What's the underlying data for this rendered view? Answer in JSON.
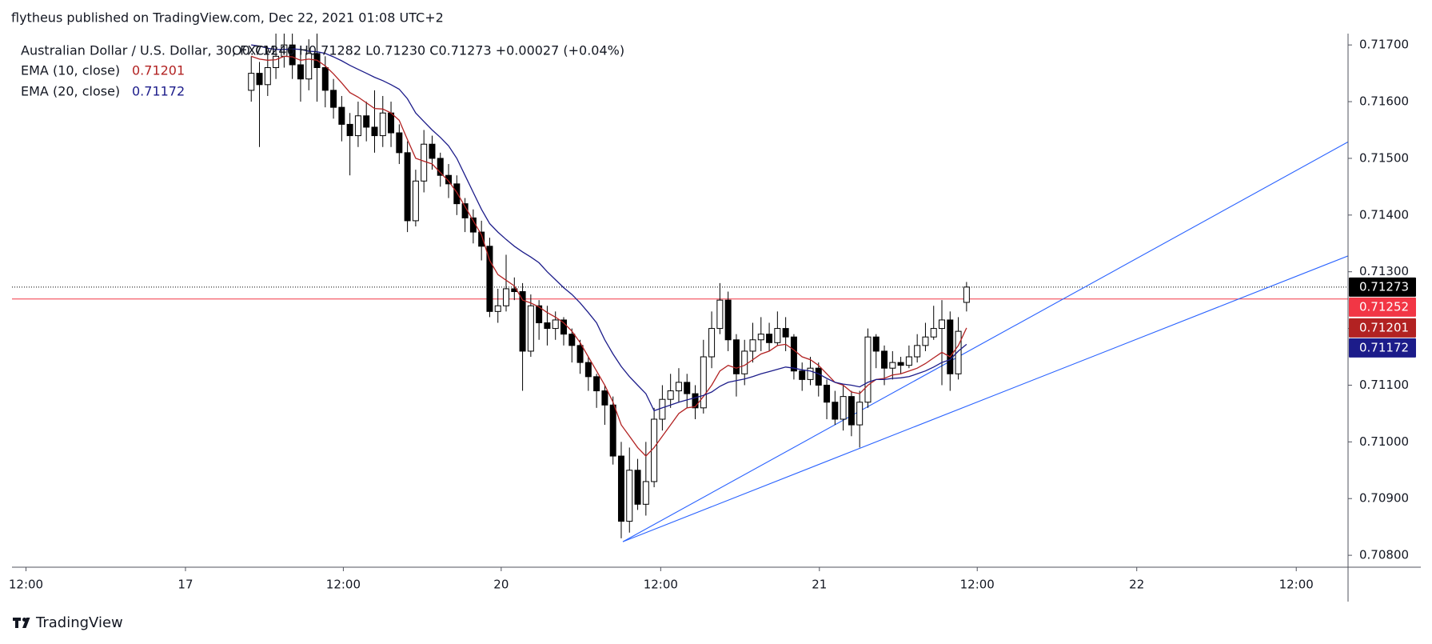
{
  "header": "flytheus published on TradingView.com, Dec 22, 2021 01:08 UTC+2",
  "footer": "TradingView",
  "chart_data": {
    "type": "candlestick",
    "symbol": "Australian Dollar / U.S. Dollar, 30, FXCM",
    "ohlc_text": "O0.71246  H0.71282  L0.71230  C0.71273  +0.00027 (+0.04%)",
    "up_color": "#ffffff",
    "down_color": "#000000",
    "wick_color": "#000000",
    "open": [
      0.7162,
      0.7165,
      0.7163,
      0.7166,
      0.7168,
      0.717,
      0.71665,
      0.7164,
      0.71685,
      0.7166,
      0.7162,
      0.7159,
      0.7156,
      0.7154,
      0.71575,
      0.71555,
      0.7154,
      0.7158,
      0.71545,
      0.7151,
      0.7139,
      0.7146,
      0.71525,
      0.715,
      0.7147,
      0.71455,
      0.7142,
      0.71395,
      0.7137,
      0.71345,
      0.7123,
      0.7124,
      0.7127,
      0.71265,
      0.7116,
      0.7124,
      0.7121,
      0.712,
      0.71215,
      0.7119,
      0.7117,
      0.7114,
      0.71115,
      0.7109,
      0.71065,
      0.70975,
      0.7086,
      0.7095,
      0.7089,
      0.7093,
      0.7104,
      0.71075,
      0.7109,
      0.71105,
      0.71085,
      0.7106,
      0.7115,
      0.712,
      0.7125,
      0.7118,
      0.7112,
      0.7116,
      0.7118,
      0.7119,
      0.71175,
      0.712,
      0.71185,
      0.71125,
      0.7111,
      0.7113,
      0.711,
      0.7107,
      0.7104,
      0.7108,
      0.7103,
      0.7107,
      0.71185,
      0.7116,
      0.7113,
      0.7114,
      0.71135,
      0.7115,
      0.7117,
      0.71185,
      0.712,
      0.71215,
      0.7112,
      0.71246
    ],
    "high": [
      0.7168,
      0.7167,
      0.7169,
      0.7172,
      0.7173,
      0.7172,
      0.7169,
      0.7171,
      0.7172,
      0.7168,
      0.7164,
      0.7161,
      0.7158,
      0.716,
      0.716,
      0.7162,
      0.7161,
      0.716,
      0.7156,
      0.7153,
      0.7148,
      0.7155,
      0.7154,
      0.7151,
      0.7149,
      0.7147,
      0.7143,
      0.7141,
      0.7139,
      0.7136,
      0.7127,
      0.7133,
      0.7129,
      0.7128,
      0.7126,
      0.7125,
      0.7124,
      0.7123,
      0.7122,
      0.712,
      0.7118,
      0.7115,
      0.7112,
      0.711,
      0.7108,
      0.71,
      0.7099,
      0.7097,
      0.71,
      0.7106,
      0.711,
      0.7112,
      0.7113,
      0.7112,
      0.711,
      0.7118,
      0.7123,
      0.7128,
      0.71265,
      0.7119,
      0.7118,
      0.7121,
      0.7122,
      0.7121,
      0.7123,
      0.7122,
      0.7119,
      0.7114,
      0.7115,
      0.7114,
      0.7111,
      0.7109,
      0.711,
      0.7109,
      0.7109,
      0.712,
      0.7119,
      0.7117,
      0.7116,
      0.7115,
      0.7117,
      0.7119,
      0.7121,
      0.7124,
      0.7125,
      0.7123,
      0.7122,
      0.71282
    ],
    "low": [
      0.716,
      0.7152,
      0.7161,
      0.7164,
      0.7166,
      0.7164,
      0.716,
      0.7162,
      0.716,
      0.7159,
      0.7157,
      0.7153,
      0.7147,
      0.7152,
      0.7153,
      0.7151,
      0.7152,
      0.7152,
      0.7149,
      0.7137,
      0.7138,
      0.7144,
      0.7148,
      0.7145,
      0.7143,
      0.714,
      0.7137,
      0.7135,
      0.7132,
      0.7122,
      0.7121,
      0.7123,
      0.7125,
      0.7109,
      0.7115,
      0.7118,
      0.7117,
      0.7118,
      0.7117,
      0.7114,
      0.7112,
      0.7109,
      0.7106,
      0.7103,
      0.7096,
      0.7083,
      0.7084,
      0.7088,
      0.7087,
      0.7092,
      0.7102,
      0.7106,
      0.7107,
      0.7106,
      0.7104,
      0.7105,
      0.7113,
      0.7119,
      0.7116,
      0.7108,
      0.711,
      0.7114,
      0.7116,
      0.7116,
      0.7117,
      0.7116,
      0.7111,
      0.7109,
      0.711,
      0.7108,
      0.7104,
      0.7103,
      0.7102,
      0.7101,
      0.7099,
      0.7106,
      0.7113,
      0.711,
      0.7111,
      0.7112,
      0.7113,
      0.7114,
      0.7116,
      0.7118,
      0.711,
      0.7109,
      0.7111,
      0.7123
    ],
    "close": [
      0.7165,
      0.7163,
      0.7166,
      0.7168,
      0.717,
      0.71665,
      0.7164,
      0.71685,
      0.7166,
      0.7162,
      0.7159,
      0.7156,
      0.7154,
      0.71575,
      0.71555,
      0.7154,
      0.7158,
      0.71545,
      0.7151,
      0.7139,
      0.7146,
      0.71525,
      0.715,
      0.7147,
      0.71455,
      0.7142,
      0.71395,
      0.7137,
      0.71345,
      0.7123,
      0.7124,
      0.7127,
      0.71265,
      0.7116,
      0.7124,
      0.7121,
      0.712,
      0.71215,
      0.7119,
      0.7117,
      0.7114,
      0.71115,
      0.7109,
      0.71065,
      0.70975,
      0.7086,
      0.7095,
      0.7089,
      0.7093,
      0.7104,
      0.71075,
      0.7109,
      0.71105,
      0.71085,
      0.7106,
      0.7115,
      0.712,
      0.7125,
      0.7118,
      0.7112,
      0.7116,
      0.7118,
      0.7119,
      0.71175,
      0.712,
      0.71185,
      0.71125,
      0.7111,
      0.7113,
      0.711,
      0.7107,
      0.7104,
      0.7108,
      0.7103,
      0.7107,
      0.71185,
      0.7116,
      0.7113,
      0.7114,
      0.71135,
      0.7115,
      0.7117,
      0.71185,
      0.712,
      0.71215,
      0.7112,
      0.71195,
      0.71273
    ],
    "series": [
      {
        "name": "EMA (10, close)",
        "color": "#b22222",
        "values": [
          0.7168,
          0.71675,
          0.71673,
          0.71674,
          0.7168,
          0.71679,
          0.71673,
          0.71675,
          0.71673,
          0.71663,
          0.71649,
          0.71633,
          0.71616,
          0.71608,
          0.71598,
          0.71588,
          0.71587,
          0.7158,
          0.71567,
          0.71533,
          0.715,
          0.71495,
          0.7149,
          0.71475,
          0.7146,
          0.7144,
          0.71415,
          0.7139,
          0.71365,
          0.7132,
          0.71295,
          0.71285,
          0.71275,
          0.7125,
          0.71245,
          0.71238,
          0.71228,
          0.7122,
          0.7121,
          0.71195,
          0.71175,
          0.7115,
          0.71125,
          0.711,
          0.7107,
          0.7103,
          0.7101,
          0.7099,
          0.70975,
          0.7099,
          0.7101,
          0.7103,
          0.7105,
          0.7106,
          0.71062,
          0.7108,
          0.711,
          0.71125,
          0.71135,
          0.7113,
          0.71135,
          0.71145,
          0.71155,
          0.7116,
          0.7117,
          0.71172,
          0.71162,
          0.7115,
          0.71145,
          0.71135,
          0.7112,
          0.71105,
          0.711,
          0.71088,
          0.71085,
          0.711,
          0.7111,
          0.71112,
          0.71118,
          0.7112,
          0.71125,
          0.7113,
          0.71138,
          0.71148,
          0.71158,
          0.7115,
          0.7117,
          0.71201
        ]
      },
      {
        "name": "EMA (20, close)",
        "color": "#1c1c8a",
        "values": [
          0.717,
          0.71698,
          0.71694,
          0.71692,
          0.71692,
          0.71693,
          0.71692,
          0.71689,
          0.71688,
          0.71685,
          0.71679,
          0.71672,
          0.71664,
          0.71657,
          0.7165,
          0.71643,
          0.71637,
          0.7163,
          0.71622,
          0.71605,
          0.7158,
          0.71565,
          0.7155,
          0.71537,
          0.71522,
          0.715,
          0.7147,
          0.7144,
          0.7141,
          0.71385,
          0.7137,
          0.71357,
          0.71345,
          0.71335,
          0.71326,
          0.71316,
          0.713,
          0.71286,
          0.71272,
          0.7126,
          0.71245,
          0.71228,
          0.7121,
          0.7118,
          0.71155,
          0.71133,
          0.71115,
          0.711,
          0.71085,
          0.71055,
          0.7106,
          0.71065,
          0.7107,
          0.71074,
          0.71078,
          0.71082,
          0.71088,
          0.71098,
          0.71105,
          0.71108,
          0.71111,
          0.71115,
          0.7112,
          0.71124,
          0.71128,
          0.71132,
          0.7113,
          0.71127,
          0.71125,
          0.7112,
          0.71112,
          0.71105,
          0.71102,
          0.711,
          0.71097,
          0.71105,
          0.7111,
          0.7111,
          0.71112,
          0.71113,
          0.71115,
          0.7112,
          0.71125,
          0.71132,
          0.7114,
          0.71145,
          0.7116,
          0.71172
        ]
      }
    ],
    "hline": {
      "value": 0.71252,
      "color": "#f23645"
    },
    "last_price_color": "#000000",
    "trendline_color": "#2962ff",
    "trendlines": [
      {
        "x": [
          45.2,
          133.4
        ],
        "y": [
          0.70824,
          0.71529
        ]
      },
      {
        "x": [
          45.2,
          133.4
        ],
        "y": [
          0.70824,
          0.71328
        ]
      }
    ],
    "xlim": [
      -29.1,
      133.4
    ],
    "xticks": [
      {
        "value": -27.4,
        "label": "12:00"
      },
      {
        "value": -8.0,
        "label": "17"
      },
      {
        "value": 11.2,
        "label": "12:00"
      },
      {
        "value": 30.4,
        "label": "20"
      },
      {
        "value": 49.8,
        "label": "12:00"
      },
      {
        "value": 69.1,
        "label": "21"
      },
      {
        "value": 88.3,
        "label": "12:00"
      },
      {
        "value": 107.7,
        "label": "22"
      },
      {
        "value": 127.1,
        "label": "12:00"
      }
    ],
    "ylim": [
      0.70779,
      0.7172
    ],
    "yticks": [
      {
        "value": 0.717,
        "label": "0.71700"
      },
      {
        "value": 0.716,
        "label": "0.71600"
      },
      {
        "value": 0.715,
        "label": "0.71500"
      },
      {
        "value": 0.714,
        "label": "0.71400"
      },
      {
        "value": 0.713,
        "label": "0.71300"
      },
      {
        "value": 0.712,
        "label": "0.71200"
      },
      {
        "value": 0.711,
        "label": "0.71100"
      },
      {
        "value": 0.71,
        "label": "0.71000"
      },
      {
        "value": 0.709,
        "label": "0.70900"
      },
      {
        "value": 0.708,
        "label": "0.70800"
      }
    ]
  }
}
